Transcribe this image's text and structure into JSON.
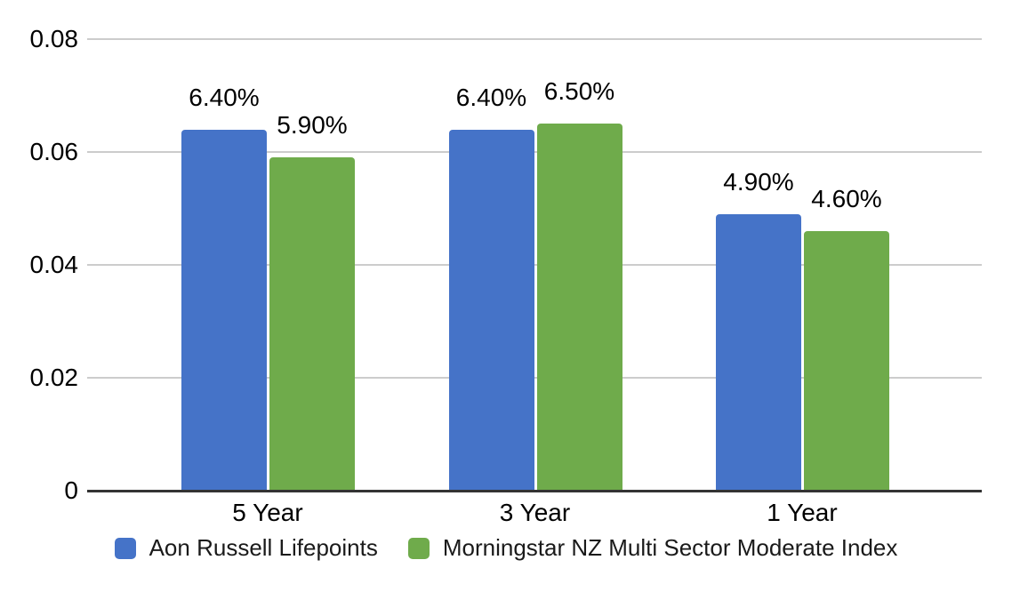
{
  "chart_data": {
    "type": "bar",
    "categories": [
      "5 Year",
      "3 Year",
      "1 Year"
    ],
    "series": [
      {
        "name": "Aon Russell Lifepoints",
        "color": "#4573C8",
        "values": [
          0.064,
          0.064,
          0.049
        ],
        "labels": [
          "6.40%",
          "6.40%",
          "4.90%"
        ]
      },
      {
        "name": "Morningstar NZ Multi Sector Moderate Index",
        "color": "#6FAB4B",
        "values": [
          0.059,
          0.065,
          0.046
        ],
        "labels": [
          "5.90%",
          "6.50%",
          "4.60%"
        ]
      }
    ],
    "title": "",
    "xlabel": "",
    "ylabel": "",
    "ylim": [
      0,
      0.08
    ],
    "yticks": [
      0,
      0.02,
      0.04,
      0.06,
      0.08
    ],
    "ytick_labels": [
      "0",
      "0.02",
      "0.04",
      "0.06",
      "0.08"
    ],
    "grid": true,
    "legend_position": "bottom"
  },
  "colors": {
    "background": "#ffffff",
    "gridline": "#cccccc",
    "axis_line": "#333333",
    "label_text": "#000000"
  }
}
